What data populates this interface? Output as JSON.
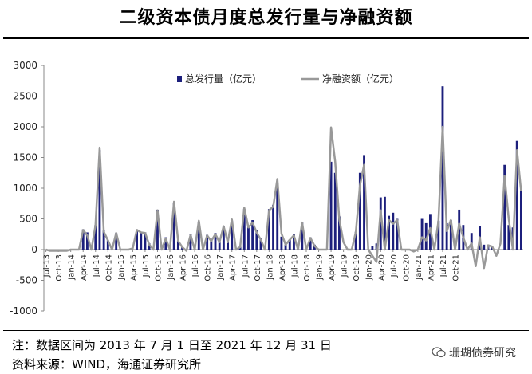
{
  "title": "二级资本债月度总发行量与净融资额",
  "note": "注：数据区间为 2013 年 7 月 1 日至 2021 年 12 月 31 日",
  "source": "资料来源：WIND，海通证券研究所",
  "brand": "珊瑚债券研究",
  "colors": {
    "bar": "#1c1f7c",
    "line": "#999999",
    "axis": "#888888"
  },
  "chart_data": {
    "type": "bar+line",
    "ylim": [
      -1000,
      3000
    ],
    "yticks": [
      -1000,
      -500,
      0,
      500,
      1000,
      1500,
      2000,
      2500,
      3000
    ],
    "legend_position": "top",
    "grid": false,
    "start_month": "2013-07",
    "x_tick_labels": [
      "Jul-13",
      "Oct-13",
      "Jan-14",
      "Apr-14",
      "Jul-14",
      "Oct-14",
      "Jan-15",
      "Apr-15",
      "Jul-15",
      "Oct-15",
      "Jan-16",
      "Apr-16",
      "Jul-16",
      "Oct-16",
      "Jan-17",
      "Apr-17",
      "Jul-17",
      "Oct-17",
      "Jan-18",
      "Apr-18",
      "Jul-18",
      "Oct-18",
      "Jan-19",
      "Apr-19",
      "Jul-19",
      "Oct-19",
      "Jan-20",
      "Apr-20",
      "Jul-20",
      "Oct-20",
      "Jan-21",
      "Apr-21",
      "Jul-21",
      "Oct-21"
    ],
    "series": [
      {
        "name": "总发行量（亿元）",
        "type": "bar",
        "values": [
          0,
          0,
          0,
          0,
          0,
          0,
          0,
          0,
          0,
          330,
          280,
          0,
          400,
          1620,
          310,
          150,
          0,
          270,
          0,
          0,
          0,
          0,
          330,
          290,
          280,
          100,
          0,
          650,
          0,
          200,
          0,
          760,
          150,
          60,
          0,
          250,
          60,
          450,
          0,
          240,
          150,
          270,
          120,
          380,
          140,
          470,
          0,
          60,
          660,
          380,
          480,
          320,
          190,
          0,
          660,
          730,
          1090,
          210,
          80,
          160,
          250,
          60,
          440,
          0,
          200,
          80,
          0,
          0,
          0,
          1430,
          1250,
          540,
          0,
          0,
          0,
          290,
          1250,
          1540,
          0,
          60,
          100,
          850,
          860,
          550,
          600,
          500,
          0,
          0,
          0,
          0,
          0,
          500,
          430,
          580,
          0,
          470,
          2660,
          430,
          480,
          0,
          650,
          400,
          0,
          270,
          0,
          380,
          80,
          80,
          50,
          0,
          0,
          1380,
          400,
          360,
          1770,
          950
        ]
      },
      {
        "name": "净融资额（亿元）",
        "type": "line",
        "values": [
          0,
          -20,
          -20,
          -20,
          -20,
          -20,
          0,
          0,
          0,
          320,
          230,
          0,
          400,
          1660,
          290,
          150,
          0,
          270,
          0,
          0,
          0,
          20,
          320,
          280,
          270,
          80,
          0,
          640,
          0,
          180,
          0,
          780,
          140,
          40,
          -20,
          240,
          0,
          470,
          0,
          230,
          140,
          250,
          120,
          380,
          120,
          490,
          0,
          40,
          680,
          360,
          440,
          280,
          160,
          0,
          640,
          700,
          1150,
          260,
          80,
          160,
          230,
          0,
          440,
          0,
          190,
          60,
          0,
          0,
          0,
          1990,
          1430,
          490,
          120,
          0,
          0,
          290,
          1050,
          1380,
          0,
          -100,
          -200,
          640,
          0,
          480,
          420,
          480,
          0,
          0,
          0,
          -30,
          0,
          200,
          150,
          350,
          0,
          470,
          2000,
          300,
          480,
          0,
          420,
          200,
          0,
          100,
          -270,
          200,
          -300,
          70,
          50,
          -100,
          100,
          1200,
          500,
          0,
          1620,
          950
        ]
      }
    ]
  }
}
